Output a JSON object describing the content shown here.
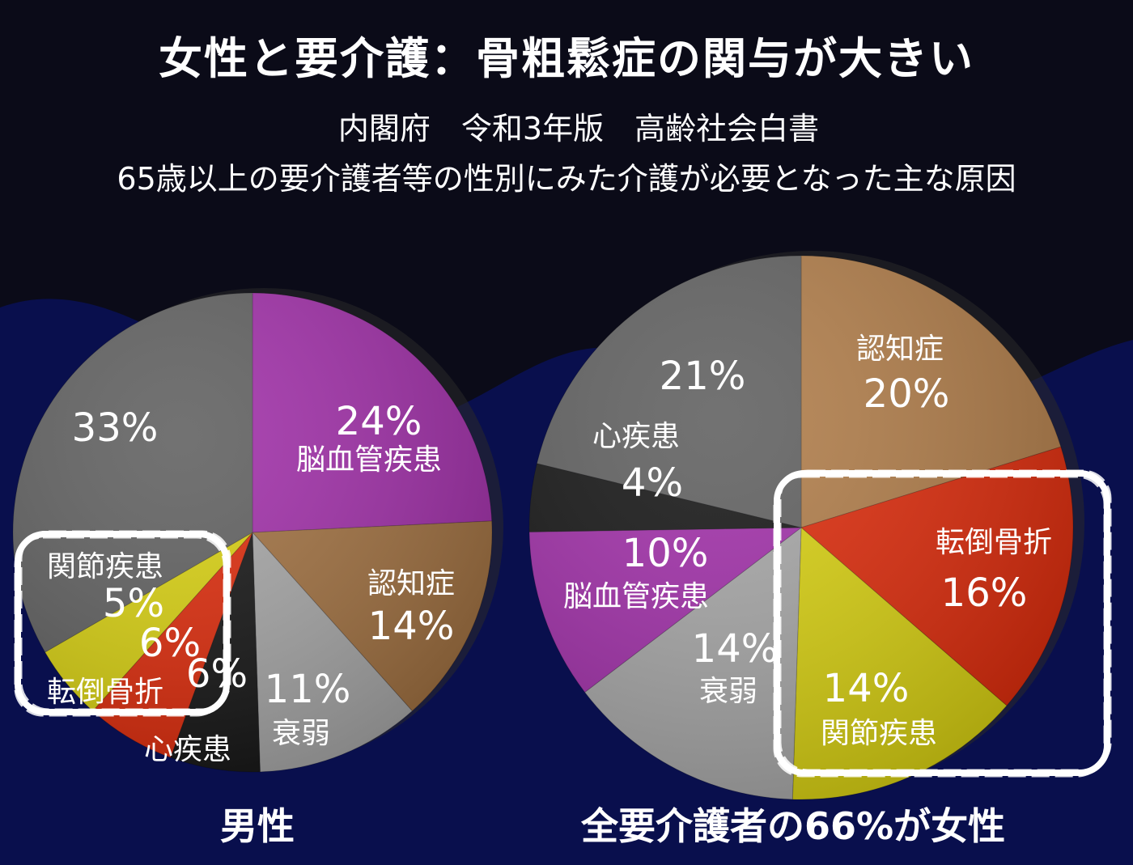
{
  "page": {
    "title": "女性と要介護：骨粗鬆症の関与が大きい",
    "subtitle1": "内閣府　令和3年版　高齢社会白書",
    "subtitle2": "65歳以上の要介護者等の性別にみた介護が必要となった主な原因"
  },
  "chart_data": [
    {
      "type": "pie",
      "caption": "男性",
      "slices": [
        {
          "label": "脳血管疾患",
          "value": 24,
          "value_label": "24%",
          "color": "#a02ea8"
        },
        {
          "label": "認知症",
          "value": 14,
          "value_label": "14%",
          "color": "#a07040"
        },
        {
          "label": "衰弱",
          "value": 11,
          "value_label": "11%",
          "color": "#a6a6a6"
        },
        {
          "label": "心疾患",
          "value": 6,
          "value_label": "6%",
          "color": "#141414"
        },
        {
          "label": "転倒骨折",
          "value": 6,
          "value_label": "6%",
          "color": "#dd2a0a"
        },
        {
          "label": "関節疾患",
          "value": 5,
          "value_label": "5%",
          "color": "#d8d010"
        },
        {
          "label": "",
          "value": 33,
          "value_label": "33%",
          "color": "#5f5f5f"
        }
      ],
      "highlight": [
        "転倒骨折",
        "関節疾患"
      ]
    },
    {
      "type": "pie",
      "caption": "全要介護者の66%が女性",
      "slices": [
        {
          "label": "認知症",
          "value": 20,
          "value_label": "20%",
          "color": "#b07c48"
        },
        {
          "label": "転倒骨折",
          "value": 16,
          "value_label": "16%",
          "color": "#dd2a0a"
        },
        {
          "label": "関節疾患",
          "value": 14,
          "value_label": "14%",
          "color": "#d8d010"
        },
        {
          "label": "衰弱",
          "value": 14,
          "value_label": "14%",
          "color": "#a6a6a6"
        },
        {
          "label": "脳血管疾患",
          "value": 10,
          "value_label": "10%",
          "color": "#a02ea8"
        },
        {
          "label": "心疾患",
          "value": 4,
          "value_label": "4%",
          "color": "#141414"
        },
        {
          "label": "",
          "value": 21,
          "value_label": "21%",
          "color": "#5f5f5f"
        }
      ],
      "highlight": [
        "転倒骨折",
        "関節疾患"
      ]
    }
  ]
}
